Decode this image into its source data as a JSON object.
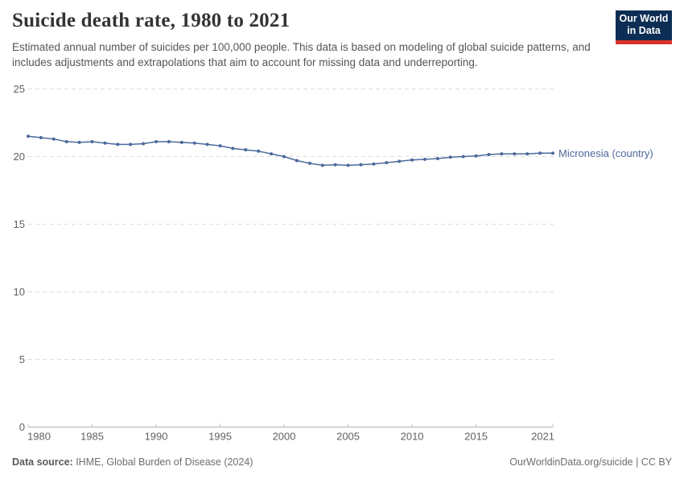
{
  "header": {
    "title": "Suicide death rate, 1980 to 2021",
    "subtitle": "Estimated annual number of suicides per 100,000 people. This data is based on modeling of global suicide patterns, and includes adjustments and extrapolations that aim to account for missing data and underreporting.",
    "logo": {
      "line1": "Our World",
      "line2": "in Data",
      "bg": "#0d2e54",
      "stripe": "#d7332a"
    }
  },
  "chart_data": {
    "type": "line",
    "title": "Suicide death rate, 1980 to 2021",
    "xlabel": "",
    "ylabel": "",
    "xlim": [
      1980,
      2021
    ],
    "ylim": [
      0,
      25
    ],
    "y_ticks": [
      0,
      5,
      10,
      15,
      20,
      25
    ],
    "x_ticks": [
      1980,
      1985,
      1990,
      1995,
      2000,
      2005,
      2010,
      2015,
      2021
    ],
    "grid": "horizontal-dashed",
    "legend_position": "end-of-line-label",
    "x": [
      1980,
      1981,
      1982,
      1983,
      1984,
      1985,
      1986,
      1987,
      1988,
      1989,
      1990,
      1991,
      1992,
      1993,
      1994,
      1995,
      1996,
      1997,
      1998,
      1999,
      2000,
      2001,
      2002,
      2003,
      2004,
      2005,
      2006,
      2007,
      2008,
      2009,
      2010,
      2011,
      2012,
      2013,
      2014,
      2015,
      2016,
      2017,
      2018,
      2019,
      2020,
      2021
    ],
    "series": [
      {
        "name": "Micronesia (country)",
        "color": "#4C6A9C",
        "values": [
          21.5,
          21.4,
          21.3,
          21.1,
          21.05,
          21.1,
          21.0,
          20.9,
          20.9,
          20.95,
          21.1,
          21.1,
          21.05,
          21.0,
          20.9,
          20.8,
          20.6,
          20.5,
          20.4,
          20.2,
          20.0,
          19.7,
          19.5,
          19.35,
          19.4,
          19.35,
          19.4,
          19.45,
          19.55,
          19.65,
          19.75,
          19.8,
          19.85,
          19.95,
          20.0,
          20.05,
          20.15,
          20.2,
          20.2,
          20.2,
          20.25,
          20.25
        ]
      }
    ],
    "colors": {
      "grid": "#dcdcdc",
      "axis": "#b0b0b0",
      "tick": "#c9c9c9",
      "tick_label": "#616161"
    }
  },
  "footer": {
    "source_label": "Data source:",
    "source_text": " IHME, Global Burden of Disease (2024)",
    "link": "OurWorldinData.org/suicide | CC BY"
  }
}
